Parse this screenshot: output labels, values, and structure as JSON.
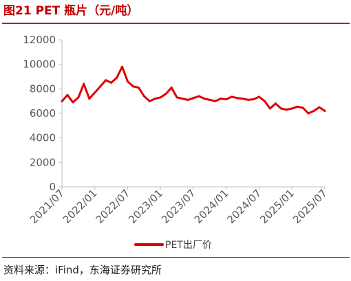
{
  "header": {
    "title": "图21  PET 瓶片（元/吨）"
  },
  "footer": {
    "source": "资料来源：iFind，东海证券研究所"
  },
  "colors": {
    "accent": "#c00000",
    "series": "#e00000",
    "axis": "#bfbfbf",
    "text": "#595959"
  },
  "chart_data": {
    "type": "line",
    "title": "PET 瓶片（元/吨）",
    "xlabel": "",
    "ylabel": "",
    "ylim": [
      0,
      12000
    ],
    "yticks": [
      0,
      2000,
      4000,
      6000,
      8000,
      10000,
      12000
    ],
    "xticks": [
      "2021/07",
      "2022/01",
      "2022/07",
      "2023/01",
      "2023/07",
      "2024/01",
      "2024/07",
      "2025/01",
      "2025/07"
    ],
    "grid": false,
    "legend": "bottom",
    "series": [
      {
        "name": "PET出厂价",
        "points": [
          [
            "2021/07",
            7000
          ],
          [
            "2021/08",
            7500
          ],
          [
            "2021/09",
            6900
          ],
          [
            "2021/10",
            7300
          ],
          [
            "2021/11",
            8400
          ],
          [
            "2021/12",
            7200
          ],
          [
            "2022/01",
            7700
          ],
          [
            "2022/02",
            8200
          ],
          [
            "2022/03",
            8700
          ],
          [
            "2022/04",
            8500
          ],
          [
            "2022/05",
            8900
          ],
          [
            "2022/06",
            9800
          ],
          [
            "2022/07",
            8600
          ],
          [
            "2022/08",
            8200
          ],
          [
            "2022/09",
            8100
          ],
          [
            "2022/10",
            7400
          ],
          [
            "2022/11",
            7000
          ],
          [
            "2022/12",
            7200
          ],
          [
            "2023/01",
            7300
          ],
          [
            "2023/02",
            7600
          ],
          [
            "2023/03",
            8100
          ],
          [
            "2023/04",
            7300
          ],
          [
            "2023/05",
            7200
          ],
          [
            "2023/06",
            7100
          ],
          [
            "2023/07",
            7250
          ],
          [
            "2023/08",
            7400
          ],
          [
            "2023/09",
            7200
          ],
          [
            "2023/10",
            7100
          ],
          [
            "2023/11",
            7000
          ],
          [
            "2023/12",
            7200
          ],
          [
            "2024/01",
            7150
          ],
          [
            "2024/02",
            7350
          ],
          [
            "2024/03",
            7250
          ],
          [
            "2024/04",
            7200
          ],
          [
            "2024/05",
            7100
          ],
          [
            "2024/06",
            7150
          ],
          [
            "2024/07",
            7350
          ],
          [
            "2024/08",
            7000
          ],
          [
            "2024/09",
            6400
          ],
          [
            "2024/10",
            6800
          ],
          [
            "2024/11",
            6400
          ],
          [
            "2024/12",
            6300
          ],
          [
            "2025/01",
            6400
          ],
          [
            "2025/02",
            6550
          ],
          [
            "2025/03",
            6450
          ],
          [
            "2025/04",
            6000
          ],
          [
            "2025/05",
            6200
          ],
          [
            "2025/06",
            6500
          ],
          [
            "2025/07",
            6200
          ]
        ]
      }
    ]
  }
}
